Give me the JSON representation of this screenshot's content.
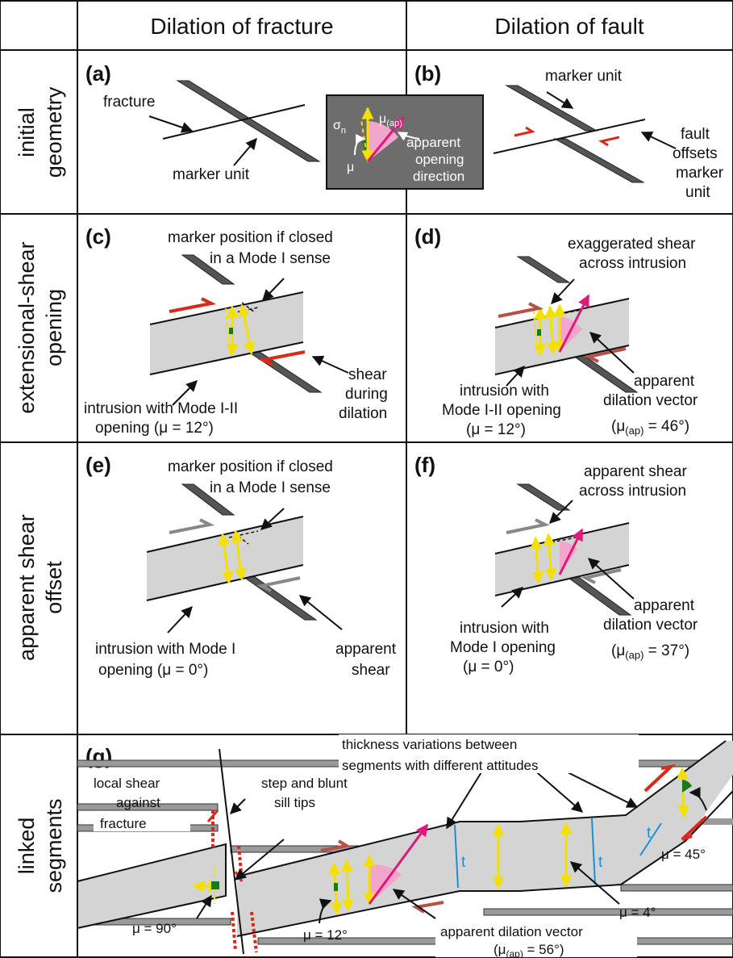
{
  "headers": {
    "col1": "Dilation of fracture",
    "col2": "Dilation of fault"
  },
  "rows": {
    "r1": [
      "initial",
      "geometry"
    ],
    "r2": [
      "extensional-shear",
      "opening"
    ],
    "r3": [
      "apparent shear",
      "offset"
    ],
    "r4": [
      "linked",
      "segments"
    ]
  },
  "panels": {
    "a": "(a)",
    "b": "(b)",
    "c": "(c)",
    "d": "(d)",
    "e": "(e)",
    "f": "(f)",
    "g": "(g)"
  },
  "a": {
    "fracture": "fracture",
    "marker": "marker unit"
  },
  "inset": {
    "sigma": "σ",
    "sigma_sub": "n",
    "mu_ap": "μ",
    "mu_ap_sub": "(ap)",
    "mu": "μ",
    "line1": "apparent",
    "line2": "opening",
    "line3": "direction"
  },
  "b": {
    "marker": "marker unit",
    "fault1": "fault",
    "fault2": "offsets",
    "fault3": "marker",
    "fault4": "unit"
  },
  "c": {
    "pos1": "marker position if closed",
    "pos2": "in a Mode I sense",
    "shear1": "shear",
    "shear2": "during",
    "shear3": "dilation",
    "intr1": "intrusion with Mode I-II",
    "intr2": "opening (μ = 12°)"
  },
  "d": {
    "ex1": "exaggerated shear",
    "ex2": "across intrusion",
    "intr1": "intrusion with",
    "intr2": "Mode I-II opening",
    "intr3": "(μ = 12°)",
    "dil1": "apparent",
    "dil2": "dilation vector",
    "dil3": "(μ",
    "dil3_sub": "(ap)",
    "dil3_end": " = 46°)"
  },
  "e": {
    "pos1": "marker position if closed",
    "pos2": "in a Mode I sense",
    "intr1": "intrusion with Mode I",
    "intr2": "opening (μ = 0°)",
    "app1": "apparent",
    "app2": "shear"
  },
  "f": {
    "sh1": "apparent shear",
    "sh2": "across intrusion",
    "intr1": "intrusion with",
    "intr2": "Mode I opening",
    "intr3": "(μ = 0°)",
    "dil1": "apparent",
    "dil2": "dilation vector",
    "dil3": "(μ",
    "dil3_sub": "(ap)",
    "dil3_end": " = 37°)"
  },
  "g": {
    "thick1": "thickness variations between",
    "thick2": "segments with different attitudes",
    "local1": "local shear",
    "local2": "against",
    "local3": "fracture",
    "step1": "step and blunt",
    "step2": "sill tips",
    "mu90": "μ = 90°",
    "mu12": "μ = 12°",
    "mu4": "μ = 4°",
    "mu45": "μ = 45°",
    "t": "t",
    "dil1": "apparent dilation vector",
    "dil2": "(μ",
    "dil2_sub": "(ap)",
    "dil2_end": " = 56°)"
  }
}
